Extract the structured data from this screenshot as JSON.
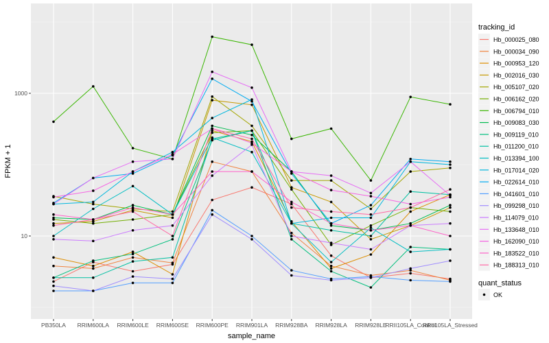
{
  "chart_data": {
    "type": "line",
    "xlabel": "sample_name",
    "ylabel": "FPKM + 1",
    "y_scale": "log10",
    "ylim": [
      1.6,
      7000
    ],
    "y_ticks": [
      10,
      1000
    ],
    "y_tick_labels": [
      "10",
      "1000"
    ],
    "grid": true,
    "legend_placement": "right",
    "categories": [
      "PB350LA",
      "RRIM600LA",
      "RRIM600LE",
      "RRIM600SE",
      "RRIM600PE",
      "RRIM901LA",
      "RRIM928BA",
      "RRIM928LA",
      "RRIM928LE",
      "RRII105LA_Control",
      "RRII105LA_Stressed"
    ],
    "legend_title": "tracking_id",
    "shape_legend_title": "quant_status",
    "shape_legend_label": "OK",
    "series": [
      {
        "name": "Hb_000025_080",
        "color": "#F8766D",
        "values": [
          2.3,
          4.3,
          3.2,
          4.0,
          32,
          48,
          28,
          5.3,
          2.6,
          3.0,
          2.5
        ]
      },
      {
        "name": "Hb_000034_090",
        "color": "#F0823E",
        "values": [
          3.8,
          3.5,
          5.0,
          4.2,
          110,
          80,
          11,
          3.8,
          2.8,
          3.3,
          2.4
        ]
      },
      {
        "name": "Hb_000953_120",
        "color": "#DD8D00",
        "values": [
          5.0,
          3.8,
          6.0,
          2.9,
          300,
          210,
          16,
          3.5,
          5.5,
          22,
          38
        ]
      },
      {
        "name": "Hb_002016_030",
        "color": "#C59900",
        "values": [
          15,
          16,
          23,
          18,
          800,
          690,
          48,
          30,
          9,
          14,
          25
        ]
      },
      {
        "name": "Hb_005107_020",
        "color": "#A3A500",
        "values": [
          36,
          28,
          24,
          22,
          900,
          350,
          60,
          60,
          24,
          80,
          90
        ]
      },
      {
        "name": "Hb_006162_020",
        "color": "#72AE00",
        "values": [
          17,
          15,
          17,
          20,
          280,
          300,
          45,
          7.5,
          14,
          25,
          22
        ]
      },
      {
        "name": "Hb_006794_010",
        "color": "#39B600",
        "values": [
          400,
          1250,
          170,
          120,
          6200,
          4800,
          230,
          320,
          60,
          890,
          700
        ]
      },
      {
        "name": "Hb_009083_030",
        "color": "#00BB4E",
        "values": [
          18,
          17,
          27,
          20,
          350,
          260,
          80,
          14,
          12,
          15,
          27
        ]
      },
      {
        "name": "Hb_009119_010",
        "color": "#00BF7D",
        "values": [
          2.6,
          4.5,
          5.6,
          9,
          220,
          300,
          9,
          3.2,
          1.9,
          7,
          6.5
        ]
      },
      {
        "name": "Hb_011200_010",
        "color": "#00C0A2",
        "values": [
          2.6,
          2.6,
          4.4,
          5.0,
          230,
          300,
          15,
          12,
          10,
          42,
          38
        ]
      },
      {
        "name": "Hb_013394_100",
        "color": "#00BDC2",
        "values": [
          10,
          24,
          50,
          20,
          240,
          150,
          15,
          4.3,
          13,
          6,
          6.5
        ]
      },
      {
        "name": "Hb_017014_020",
        "color": "#00B7DD",
        "values": [
          28,
          30,
          80,
          150,
          450,
          820,
          15,
          18,
          18,
          110,
          100
        ]
      },
      {
        "name": "Hb_022614_010",
        "color": "#00ABF1",
        "values": [
          29,
          65,
          75,
          135,
          1600,
          770,
          75,
          15,
          27,
          120,
          110
        ]
      },
      {
        "name": "Hb_041601_010",
        "color": "#529EFF",
        "values": [
          1.7,
          1.7,
          2.2,
          2.2,
          23,
          10,
          3.3,
          2.5,
          2.7,
          2.4,
          2.3
        ]
      },
      {
        "name": "Hb_099298_010",
        "color": "#9F8CFF",
        "values": [
          2.0,
          1.7,
          2.7,
          2.5,
          20,
          9.0,
          2.8,
          2.4,
          2.6,
          3.5,
          4.5
        ]
      },
      {
        "name": "Hb_114079_010",
        "color": "#CB7AFF",
        "values": [
          9,
          8.5,
          12,
          14,
          70,
          190,
          10,
          8,
          6.5,
          14,
          15
        ]
      },
      {
        "name": "Hb_133648_010",
        "color": "#E66CF5",
        "values": [
          28,
          65,
          110,
          120,
          2000,
          1200,
          80,
          70,
          40,
          110,
          37
        ]
      },
      {
        "name": "Hb_162090_010",
        "color": "#F564E3",
        "values": [
          35,
          43,
          80,
          140,
          320,
          200,
          80,
          44,
          36,
          28,
          35
        ]
      },
      {
        "name": "Hb_183522_010",
        "color": "#FE61C8",
        "values": [
          20,
          17,
          25,
          20,
          80,
          80,
          30,
          15,
          12,
          14,
          10
        ]
      },
      {
        "name": "Hb_188313_010",
        "color": "#FF67A4",
        "values": [
          14,
          17,
          22,
          10,
          320,
          230,
          25,
          22,
          20,
          25,
          45
        ]
      }
    ]
  }
}
